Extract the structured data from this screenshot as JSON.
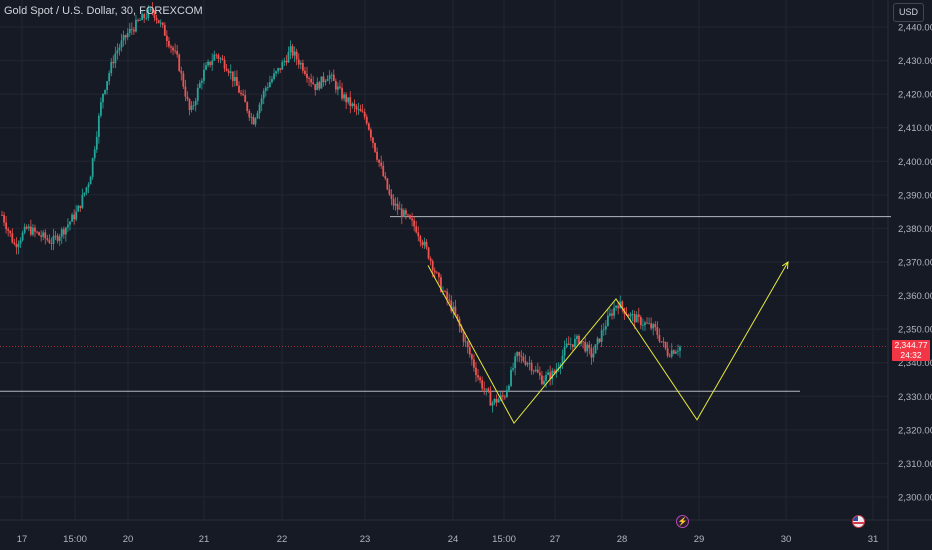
{
  "header": {
    "title": "Gold Spot / U.S. Dollar, 30, FOREXCOM",
    "currency_label": "USD"
  },
  "price_badge": {
    "price": "2,344.77",
    "countdown": "24:32"
  },
  "icons": {
    "event_flash": "flash-icon",
    "event_flag": "us-flag-icon"
  },
  "colors": {
    "background": "#161a25",
    "grid": "#232632",
    "bull": "#26a69a",
    "bear": "#ef5350",
    "drawing_lines": "#d1d4dc",
    "projection": "#e6e93a",
    "price_line": "#f23645"
  },
  "chart_data": {
    "type": "candlestick",
    "title": "Gold Spot / U.S. Dollar, 30, FOREXCOM",
    "ylim": [
      2295,
      2447
    ],
    "y_ticks": [
      "2,300.00",
      "2,310.00",
      "2,320.00",
      "2,330.00",
      "2,340.00",
      "2,350.00",
      "2,360.00",
      "2,370.00",
      "2,380.00",
      "2,390.00",
      "2,400.00",
      "2,410.00",
      "2,420.00",
      "2,430.00",
      "2,440.00"
    ],
    "x_ticks": [
      "17",
      "15:00",
      "20",
      "21",
      "22",
      "23",
      "24",
      "15:00",
      "27",
      "28",
      "29",
      "30",
      "31"
    ],
    "grid": true,
    "last_price": 2344.77,
    "price_path": [
      2384,
      2375,
      2380,
      2378,
      2376,
      2380,
      2385,
      2395,
      2420,
      2432,
      2438,
      2442,
      2445,
      2438,
      2430,
      2414,
      2426,
      2432,
      2428,
      2420,
      2412,
      2422,
      2427,
      2433,
      2428,
      2422,
      2426,
      2420,
      2416,
      2413,
      2400,
      2388,
      2384,
      2380,
      2372,
      2362,
      2355,
      2345,
      2335,
      2328,
      2330,
      2342,
      2340,
      2335,
      2337,
      2345,
      2347,
      2342,
      2351,
      2358,
      2354,
      2352,
      2350,
      2343,
      2344.77
    ],
    "horizontal_lines": [
      {
        "price": 2383.5,
        "x_start": "23",
        "x_end": "31"
      },
      {
        "price": 2331.5,
        "x_start": "17",
        "x_end": "30"
      }
    ],
    "projection_path": [
      {
        "x": "24",
        "price": 2369
      },
      {
        "x": "24 15:00",
        "price": 2322
      },
      {
        "x": "28",
        "price": 2359
      },
      {
        "x": "29",
        "price": 2323
      },
      {
        "x": "30",
        "price": 2370
      }
    ]
  }
}
